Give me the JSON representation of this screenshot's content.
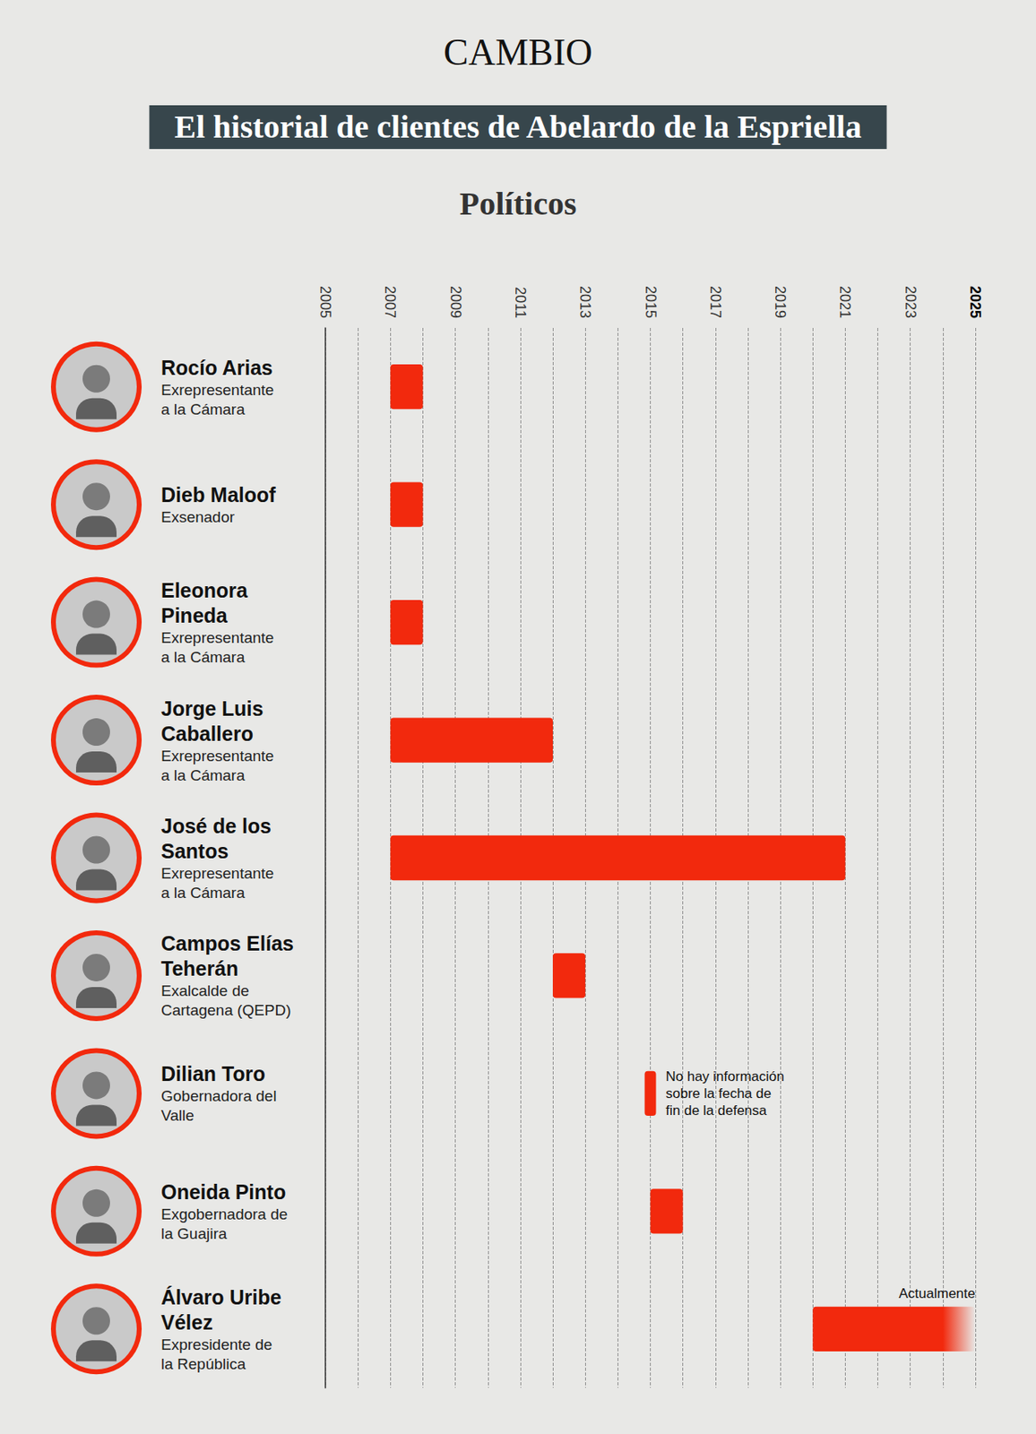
{
  "chart_data": {
    "type": "gantt",
    "brand": "CAMBIO",
    "title": "El historial de clientes de Abelardo de la Espriella",
    "subtitle": "Políticos",
    "categories": [
      "Rocío Arias",
      "Dieb Maloof",
      "Eleonora Pineda",
      "Jorge Luis Caballero",
      "José de los Santos",
      "Campos Elías Teherán",
      "Dilian Toro",
      "Oneida Pinto",
      "Álvaro Uribe Vélez"
    ],
    "roles": [
      "Exrepresentante a la Cámara",
      "Exsenador",
      "Exrepresentante a la Cámara",
      "Exrepresentante a la Cámara",
      "Exrepresentante a la Cámara",
      "Exalcalde de Cartagena (QEPD)",
      "Gobernadora del Valle",
      "Exgobernadora de la Guajira",
      "Expresidente de la República"
    ],
    "start": [
      2007,
      2007,
      2007,
      2007,
      2007,
      2012,
      2015,
      2015,
      2020
    ],
    "end": [
      2008,
      2008,
      2008,
      2012,
      2021,
      2013,
      null,
      2016,
      2025
    ],
    "notes": [
      null,
      null,
      null,
      null,
      null,
      null,
      "No hay información sobre la fecha de fin de la defensa",
      null,
      "Actualmente"
    ],
    "color": "#f2290d",
    "xlim": [
      2005,
      2025
    ],
    "xticks": [
      2005,
      2007,
      2009,
      2011,
      2013,
      2015,
      2017,
      2019,
      2021,
      2023,
      2025
    ],
    "grid": true
  }
}
